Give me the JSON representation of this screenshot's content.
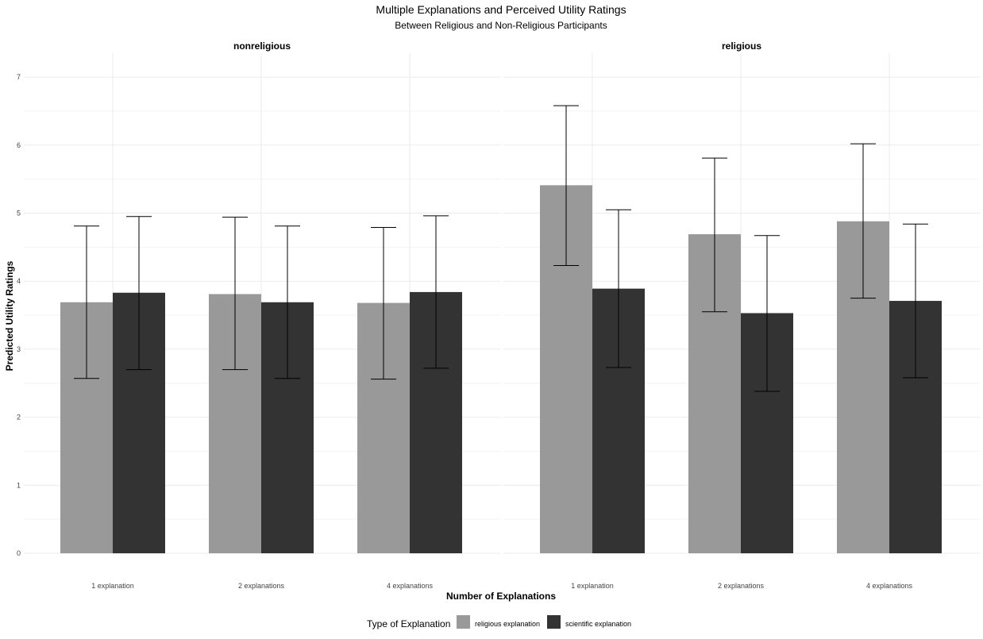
{
  "chart_data": {
    "type": "bar",
    "title": "Multiple Explanations and Perceived Utility Ratings",
    "subtitle": "Between Religious and Non-Religious Participants",
    "xlabel": "Number of Explanations",
    "ylabel": "Predicted Utility Ratings",
    "ylim": [
      0,
      7.35
    ],
    "yticks": [
      "0",
      "1",
      "2",
      "3",
      "4",
      "5",
      "6",
      "7"
    ],
    "grid": true,
    "legend": {
      "title": "Type of Explanation",
      "placement": "bottom"
    },
    "categories": [
      "1 explanation",
      "2 explanations",
      "4 explanations"
    ],
    "series_colors": {
      "religious explanation": "#999999",
      "scientific explanation": "#333333"
    },
    "panels": [
      {
        "name": "nonreligious",
        "series": [
          {
            "name": "religious explanation",
            "values": [
              3.69,
              3.81,
              3.68
            ],
            "lower": [
              2.57,
              2.7,
              2.56
            ],
            "upper": [
              4.81,
              4.94,
              4.79
            ]
          },
          {
            "name": "scientific explanation",
            "values": [
              3.83,
              3.69,
              3.84
            ],
            "lower": [
              2.7,
              2.57,
              2.72
            ],
            "upper": [
              4.95,
              4.81,
              4.96
            ]
          }
        ]
      },
      {
        "name": "religious",
        "series": [
          {
            "name": "religious explanation",
            "values": [
              5.41,
              4.69,
              4.88
            ],
            "lower": [
              4.23,
              3.55,
              3.75
            ],
            "upper": [
              6.58,
              5.81,
              6.02
            ]
          },
          {
            "name": "scientific explanation",
            "values": [
              3.89,
              3.53,
              3.71
            ],
            "lower": [
              2.73,
              2.38,
              2.58
            ],
            "upper": [
              5.05,
              4.67,
              4.84
            ]
          }
        ]
      }
    ]
  }
}
